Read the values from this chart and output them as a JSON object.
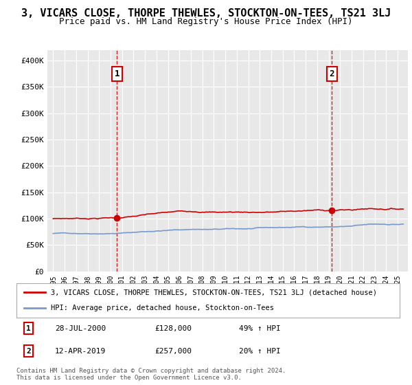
{
  "title": "3, VICARS CLOSE, THORPE THEWLES, STOCKTON-ON-TEES, TS21 3LJ",
  "subtitle": "Price paid vs. HM Land Registry's House Price Index (HPI)",
  "title_fontsize": 11,
  "subtitle_fontsize": 9,
  "background_color": "#ffffff",
  "plot_bg_color": "#e8e8e8",
  "grid_color": "#ffffff",
  "red_line_color": "#cc0000",
  "blue_line_color": "#7799cc",
  "vline_color": "#cc0000",
  "ylim": [
    0,
    420000
  ],
  "yticks": [
    0,
    50000,
    100000,
    150000,
    200000,
    250000,
    300000,
    350000,
    400000
  ],
  "ytick_labels": [
    "£0",
    "£50K",
    "£100K",
    "£150K",
    "£200K",
    "£250K",
    "£300K",
    "£350K",
    "£400K"
  ],
  "transaction1": {
    "date": "28-JUL-2000",
    "price": 128000,
    "label": "1",
    "year": 2000.57,
    "pct": "49% ↑ HPI"
  },
  "transaction2": {
    "date": "12-APR-2019",
    "price": 257000,
    "label": "2",
    "year": 2019.28,
    "pct": "20% ↑ HPI"
  },
  "legend_line1": "3, VICARS CLOSE, THORPE THEWLES, STOCKTON-ON-TEES, TS21 3LJ (detached house)",
  "legend_line2": "HPI: Average price, detached house, Stockton-on-Tees",
  "footnote": "Contains HM Land Registry data © Crown copyright and database right 2024.\nThis data is licensed under the Open Government Licence v3.0.",
  "xtick_years": [
    1995,
    1996,
    1997,
    1998,
    1999,
    2000,
    2001,
    2002,
    2003,
    2004,
    2005,
    2006,
    2007,
    2008,
    2009,
    2010,
    2011,
    2012,
    2013,
    2014,
    2015,
    2016,
    2017,
    2018,
    2019,
    2020,
    2021,
    2022,
    2023,
    2024,
    2025
  ]
}
